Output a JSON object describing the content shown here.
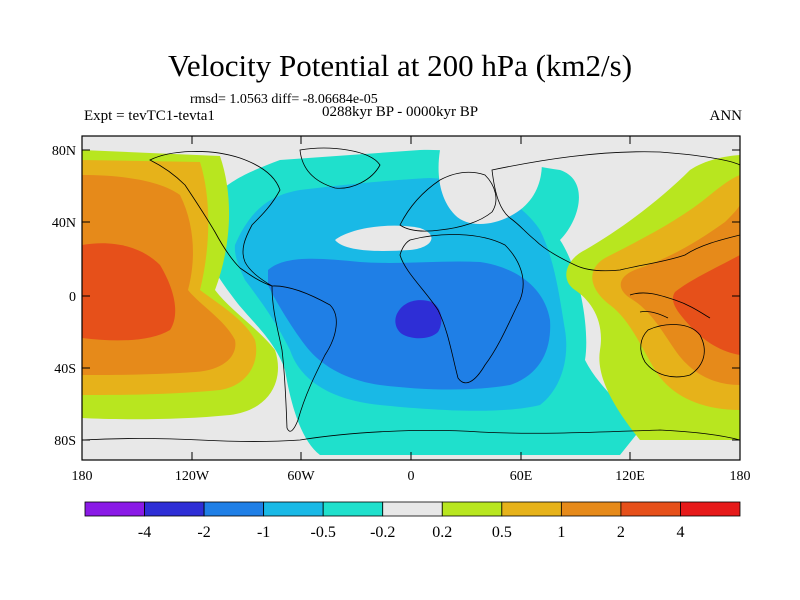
{
  "title": "Velocity Potential at 200 hPa (km2/s)",
  "stats": "rmsd= 1.0563 diff= -8.06684e-05",
  "left_string": "Expt = tevTC1-tevta1",
  "center_string": "0288kyr BP - 0000kyr BP",
  "right_string": "ANN",
  "map": {
    "lat_ticks": [
      "80N",
      "40N",
      "0",
      "40S",
      "80S"
    ],
    "lon_ticks": [
      "180",
      "120W",
      "60W",
      "0",
      "60E",
      "120E",
      "180"
    ]
  },
  "colorbar": {
    "labels": [
      "-4",
      "-2",
      "-1",
      "-0.5",
      "-0.2",
      "0.2",
      "0.5",
      "1",
      "2",
      "4"
    ],
    "colors": [
      "#8a1ae6",
      "#2e2ed6",
      "#1f7fe6",
      "#19b9e6",
      "#1fe0cc",
      "#e8e8e8",
      "#b8e61f",
      "#e6b21a",
      "#e68a1a",
      "#e6501a",
      "#e61a1a"
    ]
  }
}
